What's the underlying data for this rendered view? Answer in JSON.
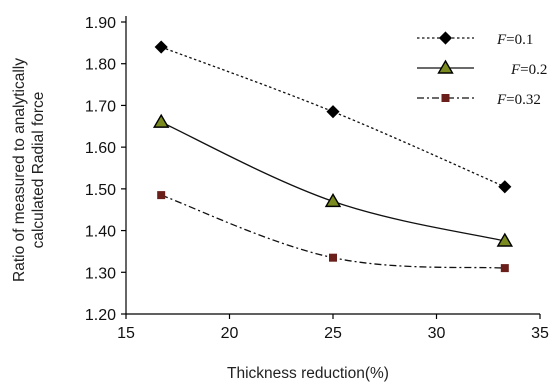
{
  "chart_data": {
    "type": "line",
    "xlabel": "Thickness reduction(%)",
    "ylabel_lines": [
      "Ratio of measured to analytically",
      "calculated Radial force"
    ],
    "xlim": [
      15,
      35
    ],
    "ylim": [
      1.2,
      1.9
    ],
    "xticks": [
      "15",
      "20",
      "25",
      "30",
      "35"
    ],
    "yticks": [
      "1.20",
      "1.30",
      "1.40",
      "1.50",
      "1.60",
      "1.70",
      "1.80",
      "1.90"
    ],
    "grid": false,
    "legend_position": "top-right",
    "x": [
      16.7,
      25,
      33.3
    ],
    "series": [
      {
        "name_var": "F",
        "name_rest": "=0.1",
        "values": [
          1.84,
          1.685,
          1.505
        ],
        "marker": "diamond",
        "line": "dotted",
        "color": "#111111"
      },
      {
        "name_var": "F",
        "name_rest": "=0.2",
        "values": [
          1.66,
          1.47,
          1.375
        ],
        "marker": "triangle",
        "line": "solid",
        "color": "#111111",
        "marker_fill": "#7b8a1f"
      },
      {
        "name_var": "F",
        "name_rest": "=0.32",
        "values": [
          1.485,
          1.335,
          1.31
        ],
        "marker": "square",
        "line": "dashdot",
        "color": "#111111",
        "marker_fill": "#6a1f1a"
      }
    ]
  }
}
